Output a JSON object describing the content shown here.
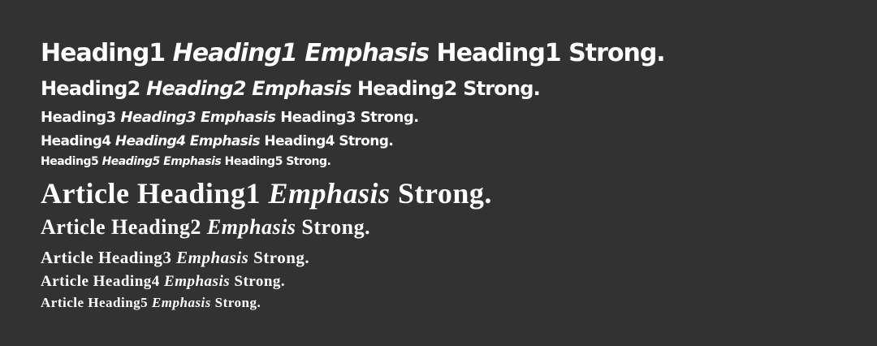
{
  "headings": [
    {
      "base": "Heading1",
      "emphasis": "Heading1 Emphasis",
      "strong": "Heading1 Strong."
    },
    {
      "base": "Heading2",
      "emphasis": "Heading2 Emphasis",
      "strong": "Heading2 Strong."
    },
    {
      "base": "Heading3",
      "emphasis": "Heading3 Emphasis",
      "strong": "Heading3 Strong."
    },
    {
      "base": "Heading4",
      "emphasis": "Heading4 Emphasis",
      "strong": "Heading4 Strong."
    },
    {
      "base": "Heading5",
      "emphasis": "Heading5 Emphasis",
      "strong": "Heading5 Strong."
    }
  ],
  "article_headings": [
    {
      "base": "Article Heading1",
      "emphasis": "Emphasis",
      "strong": "Strong."
    },
    {
      "base": "Article Heading2",
      "emphasis": "Emphasis",
      "strong": "Strong."
    },
    {
      "base": "Article Heading3",
      "emphasis": "Emphasis",
      "strong": "Strong."
    },
    {
      "base": "Article Heading4",
      "emphasis": "Emphasis",
      "strong": "Strong."
    },
    {
      "base": "Article Heading5",
      "emphasis": "Emphasis",
      "strong": "Strong."
    }
  ],
  "colors": {
    "background": "#323232",
    "text": "#ffffff"
  }
}
